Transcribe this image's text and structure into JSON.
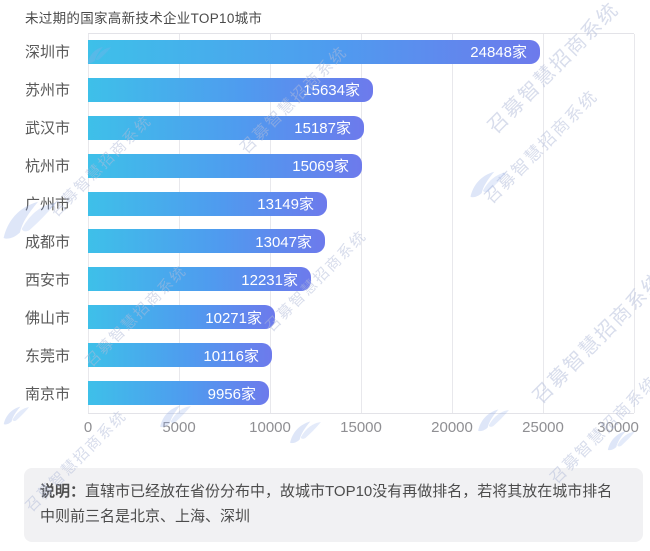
{
  "title": "未过期的国家高新技术企业TOP10城市",
  "chart_data": {
    "type": "bar",
    "orientation": "horizontal",
    "title": "未过期的国家高新技术企业TOP10城市",
    "categories": [
      "深圳市",
      "苏州市",
      "武汉市",
      "杭州市",
      "广州市",
      "成都市",
      "西安市",
      "佛山市",
      "东莞市",
      "南京市"
    ],
    "values": [
      24848,
      15634,
      15187,
      15069,
      13149,
      13047,
      12231,
      10271,
      10116,
      9956
    ],
    "value_labels": [
      "24848家",
      "15634家",
      "15187家",
      "15069家",
      "13149家",
      "13047家",
      "12231家",
      "10271家",
      "10116家",
      "9956家"
    ],
    "unit_suffix": "家",
    "xlabel": "",
    "ylabel": "",
    "xlim": [
      0,
      30000
    ],
    "x_ticks": [
      0,
      5000,
      10000,
      15000,
      20000,
      25000,
      30000
    ],
    "x_tick_labels": [
      "0",
      "5000",
      "10000",
      "15000",
      "20000",
      "25000",
      "30000"
    ],
    "grid": true,
    "legend": "none",
    "bar_gradient": [
      "#3ec0e9",
      "#6d7aec"
    ],
    "label_color": "#595959",
    "tick_color": "#8f8f93",
    "value_text_color": "#ffffff"
  },
  "note": {
    "label": "说明：",
    "text": "直辖市已经放在省份分布中，故城市TOP10没有再做排名，若将其放在城市排名中则前三名是北京、上海、深圳"
  },
  "watermark": {
    "text": "召募智慧招商系统",
    "icon": "bird-swoosh-icon",
    "color": "#b2bcda"
  }
}
